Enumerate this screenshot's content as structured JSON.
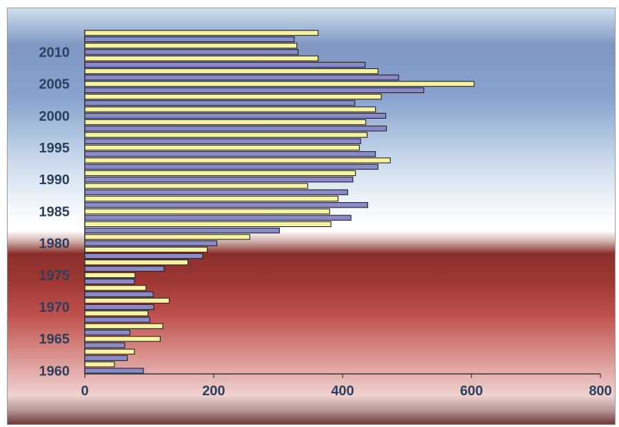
{
  "chart_data": {
    "type": "bar",
    "orientation": "horizontal",
    "title": "",
    "xlabel": "",
    "ylabel": "",
    "xlim": [
      0,
      800
    ],
    "x_ticks": [
      0,
      200,
      400,
      600,
      800
    ],
    "y_tick_labels": [
      "1960",
      "1965",
      "1970",
      "1975",
      "1980",
      "1985",
      "1990",
      "1995",
      "2000",
      "2005",
      "2010"
    ],
    "grid": false,
    "legend": "none",
    "bar_colors": {
      "even_year": "#8a8ac8",
      "odd_year": "#f7f3a0"
    },
    "categories": [
      1960,
      1961,
      1962,
      1963,
      1964,
      1965,
      1966,
      1967,
      1968,
      1969,
      1970,
      1971,
      1972,
      1973,
      1974,
      1975,
      1976,
      1977,
      1978,
      1979,
      1980,
      1981,
      1982,
      1983,
      1984,
      1985,
      1986,
      1987,
      1988,
      1989,
      1990,
      1991,
      1992,
      1993,
      1994,
      1995,
      1996,
      1997,
      1998,
      1999,
      2000,
      2001,
      2002,
      2003,
      2004,
      2005,
      2006,
      2007,
      2008,
      2009,
      2010,
      2011,
      2012,
      2013
    ],
    "values": [
      91,
      46,
      66,
      77,
      62,
      117,
      70,
      121,
      101,
      98,
      107,
      131,
      106,
      95,
      77,
      78,
      123,
      160,
      183,
      190,
      205,
      256,
      302,
      382,
      413,
      380,
      439,
      393,
      408,
      346,
      416,
      420,
      455,
      474,
      451,
      426,
      428,
      438,
      468,
      436,
      467,
      451,
      419,
      460,
      526,
      604,
      487,
      455,
      435,
      362,
      331,
      329,
      325,
      362
    ]
  }
}
